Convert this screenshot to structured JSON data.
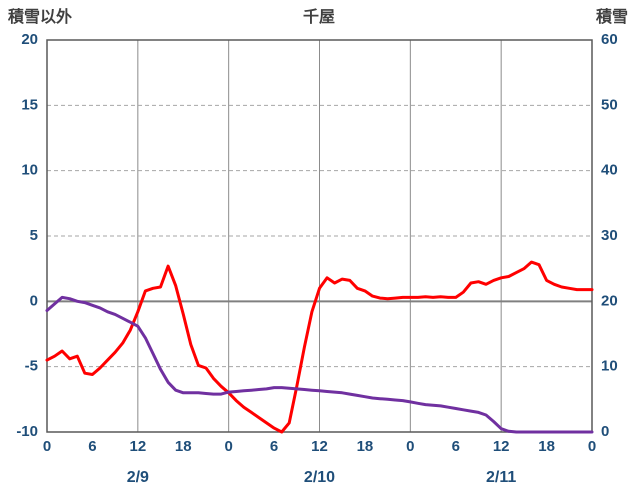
{
  "colors": {
    "axis_text": "#1F4E79",
    "title_text": "#404040",
    "grid_dashed": "#A6A6A6",
    "grid_vertical": "#8C8C8C",
    "zero_line": "#808080",
    "plot_border": "#595959",
    "red_series": "#FF0000",
    "purple_series": "#7030A0",
    "background": "#FFFFFF"
  },
  "chart_data": {
    "type": "line",
    "title": "千屋",
    "left_axis": {
      "label": "積雪以外",
      "min": -10,
      "max": 20,
      "ticks": [
        20,
        15,
        10,
        5,
        0,
        -5,
        -10
      ]
    },
    "right_axis": {
      "label": "積雪",
      "min": 0,
      "max": 60,
      "ticks": [
        60,
        50,
        40,
        30,
        20,
        10,
        0
      ]
    },
    "x_axis": {
      "min_hour": 0,
      "max_hour": 72,
      "tick_interval_hours": 6,
      "tick_labels": [
        "0",
        "6",
        "12",
        "18",
        "0",
        "6",
        "12",
        "18",
        "0",
        "6",
        "12",
        "18",
        "0"
      ],
      "day_labels": [
        "2/9",
        "2/10",
        "2/11"
      ],
      "day_label_hours": [
        12,
        36,
        60
      ],
      "vertical_gridline_hours": [
        12,
        24,
        36,
        48,
        60
      ],
      "grid": "on",
      "legend": "none"
    },
    "hours": [
      0,
      1,
      2,
      3,
      4,
      5,
      6,
      7,
      8,
      9,
      10,
      11,
      12,
      13,
      14,
      15,
      16,
      17,
      18,
      19,
      20,
      21,
      22,
      23,
      24,
      25,
      26,
      27,
      28,
      29,
      30,
      31,
      32,
      33,
      34,
      35,
      36,
      37,
      38,
      39,
      40,
      41,
      42,
      43,
      44,
      45,
      46,
      47,
      48,
      49,
      50,
      51,
      52,
      53,
      54,
      55,
      56,
      57,
      58,
      59,
      60,
      61,
      62,
      63,
      64,
      65,
      66,
      67,
      68,
      69,
      70,
      71,
      72
    ],
    "series": [
      {
        "id": "red",
        "axis": "left",
        "color": "#FF0000",
        "values": [
          -4.5,
          -4.2,
          -3.8,
          -4.4,
          -4.2,
          -5.5,
          -5.6,
          -5.1,
          -4.5,
          -3.9,
          -3.2,
          -2.2,
          -0.8,
          0.8,
          1.0,
          1.1,
          2.7,
          1.2,
          -1.0,
          -3.3,
          -4.9,
          -5.1,
          -5.9,
          -6.5,
          -7.0,
          -7.6,
          -8.1,
          -8.5,
          -8.9,
          -9.3,
          -9.7,
          -10.0,
          -9.3,
          -6.5,
          -3.5,
          -0.8,
          1.0,
          1.8,
          1.4,
          1.7,
          1.6,
          1.0,
          0.8,
          0.4,
          0.25,
          0.2,
          0.25,
          0.3,
          0.3,
          0.3,
          0.35,
          0.3,
          0.35,
          0.3,
          0.3,
          0.7,
          1.4,
          1.5,
          1.3,
          1.6,
          1.8,
          1.9,
          2.2,
          2.5,
          3.0,
          2.8,
          1.6,
          1.3,
          1.1,
          1.0,
          0.9,
          0.9,
          0.9
        ]
      },
      {
        "id": "purple",
        "axis": "right",
        "color": "#7030A0",
        "values": [
          18.6,
          19.6,
          20.6,
          20.4,
          20.0,
          19.8,
          19.4,
          19.0,
          18.4,
          18.0,
          17.4,
          16.8,
          16.2,
          14.4,
          12.0,
          9.6,
          7.6,
          6.4,
          6.0,
          6.0,
          6.0,
          5.9,
          5.8,
          5.8,
          6.1,
          6.2,
          6.3,
          6.4,
          6.5,
          6.6,
          6.8,
          6.8,
          6.7,
          6.6,
          6.5,
          6.4,
          6.3,
          6.2,
          6.1,
          6.0,
          5.8,
          5.6,
          5.4,
          5.2,
          5.1,
          5.0,
          4.9,
          4.8,
          4.6,
          4.4,
          4.2,
          4.1,
          4.0,
          3.8,
          3.6,
          3.4,
          3.2,
          3.0,
          2.6,
          1.6,
          0.5,
          0.1,
          0.0,
          0.0,
          0.0,
          0.0,
          0.0,
          0.0,
          0.0,
          0.0,
          0.0,
          0.0,
          0.0
        ]
      }
    ]
  }
}
